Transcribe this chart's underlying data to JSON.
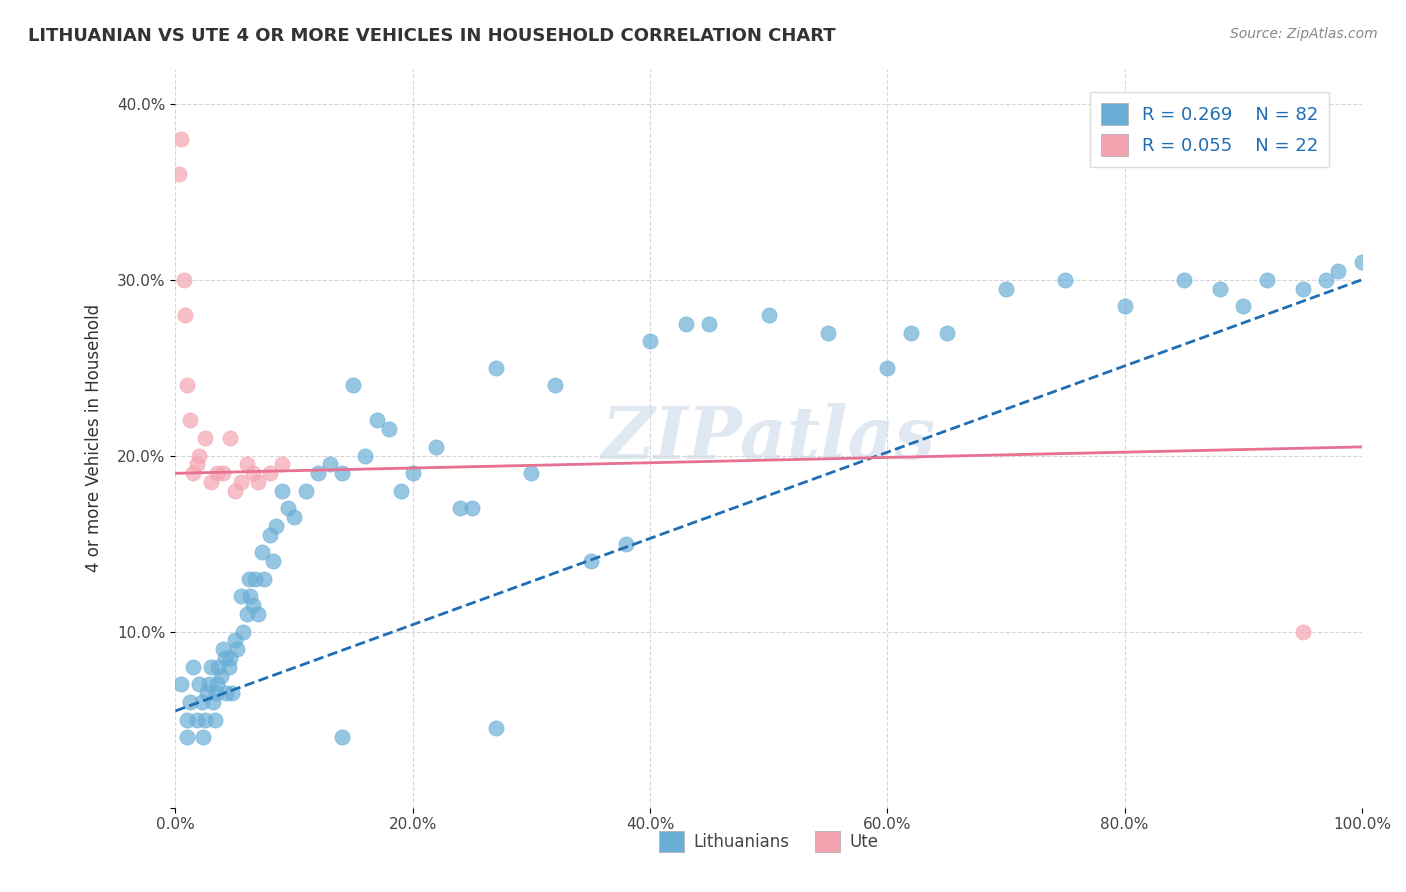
{
  "title": "LITHUANIAN VS UTE 4 OR MORE VEHICLES IN HOUSEHOLD CORRELATION CHART",
  "source": "Source: ZipAtlas.com",
  "xlabel": "",
  "ylabel": "4 or more Vehicles in Household",
  "legend_labels": [
    "Lithuanians",
    "Ute"
  ],
  "R_lithuanian": 0.269,
  "N_lithuanian": 82,
  "R_ute": 0.055,
  "N_ute": 22,
  "xlim": [
    0.0,
    1.0
  ],
  "ylim": [
    0.0,
    0.42
  ],
  "xticks": [
    0.0,
    0.2,
    0.4,
    0.6,
    0.8,
    1.0
  ],
  "yticks": [
    0.0,
    0.1,
    0.2,
    0.3,
    0.4
  ],
  "xtick_labels": [
    "0.0%",
    "20.0%",
    "40.0%",
    "60.0%",
    "80.0%",
    "100.0%"
  ],
  "ytick_labels": [
    "",
    "10.0%",
    "20.0%",
    "30.0%",
    "40.0%"
  ],
  "blue_color": "#6aaed6",
  "pink_color": "#f4a4b0",
  "blue_line_color": "#1f6eb5",
  "pink_line_color": "#e87090",
  "dash_line_color": "#aaaaaa",
  "watermark": "ZIPatlas",
  "blue_scatter_x": [
    0.005,
    0.01,
    0.01,
    0.012,
    0.015,
    0.018,
    0.02,
    0.022,
    0.023,
    0.025,
    0.027,
    0.028,
    0.03,
    0.032,
    0.033,
    0.034,
    0.035,
    0.036,
    0.038,
    0.04,
    0.042,
    0.043,
    0.045,
    0.046,
    0.048,
    0.05,
    0.052,
    0.055,
    0.057,
    0.06,
    0.062,
    0.063,
    0.065,
    0.067,
    0.07,
    0.073,
    0.075,
    0.08,
    0.082,
    0.085,
    0.09,
    0.095,
    0.1,
    0.11,
    0.12,
    0.13,
    0.14,
    0.15,
    0.16,
    0.17,
    0.18,
    0.19,
    0.2,
    0.22,
    0.24,
    0.25,
    0.27,
    0.3,
    0.32,
    0.35,
    0.38,
    0.4,
    0.43,
    0.45,
    0.5,
    0.55,
    0.6,
    0.62,
    0.65,
    0.7,
    0.75,
    0.8,
    0.85,
    0.88,
    0.9,
    0.92,
    0.95,
    0.97,
    0.98,
    1.0,
    0.27,
    0.14
  ],
  "blue_scatter_y": [
    0.07,
    0.05,
    0.04,
    0.06,
    0.08,
    0.05,
    0.07,
    0.06,
    0.04,
    0.05,
    0.065,
    0.07,
    0.08,
    0.06,
    0.05,
    0.065,
    0.07,
    0.08,
    0.075,
    0.09,
    0.085,
    0.065,
    0.08,
    0.085,
    0.065,
    0.095,
    0.09,
    0.12,
    0.1,
    0.11,
    0.13,
    0.12,
    0.115,
    0.13,
    0.11,
    0.145,
    0.13,
    0.155,
    0.14,
    0.16,
    0.18,
    0.17,
    0.165,
    0.18,
    0.19,
    0.195,
    0.19,
    0.24,
    0.2,
    0.22,
    0.215,
    0.18,
    0.19,
    0.205,
    0.17,
    0.17,
    0.25,
    0.19,
    0.24,
    0.14,
    0.15,
    0.265,
    0.275,
    0.275,
    0.28,
    0.27,
    0.25,
    0.27,
    0.27,
    0.295,
    0.3,
    0.285,
    0.3,
    0.295,
    0.285,
    0.3,
    0.295,
    0.3,
    0.305,
    0.31,
    0.045,
    0.04
  ],
  "pink_scatter_x": [
    0.005,
    0.008,
    0.01,
    0.012,
    0.015,
    0.018,
    0.02,
    0.025,
    0.03,
    0.035,
    0.04,
    0.046,
    0.05,
    0.055,
    0.06,
    0.065,
    0.07,
    0.08,
    0.09,
    0.95,
    0.003,
    0.007
  ],
  "pink_scatter_y": [
    0.38,
    0.28,
    0.24,
    0.22,
    0.19,
    0.195,
    0.2,
    0.21,
    0.185,
    0.19,
    0.19,
    0.21,
    0.18,
    0.185,
    0.195,
    0.19,
    0.185,
    0.19,
    0.195,
    0.1,
    0.36,
    0.3
  ]
}
